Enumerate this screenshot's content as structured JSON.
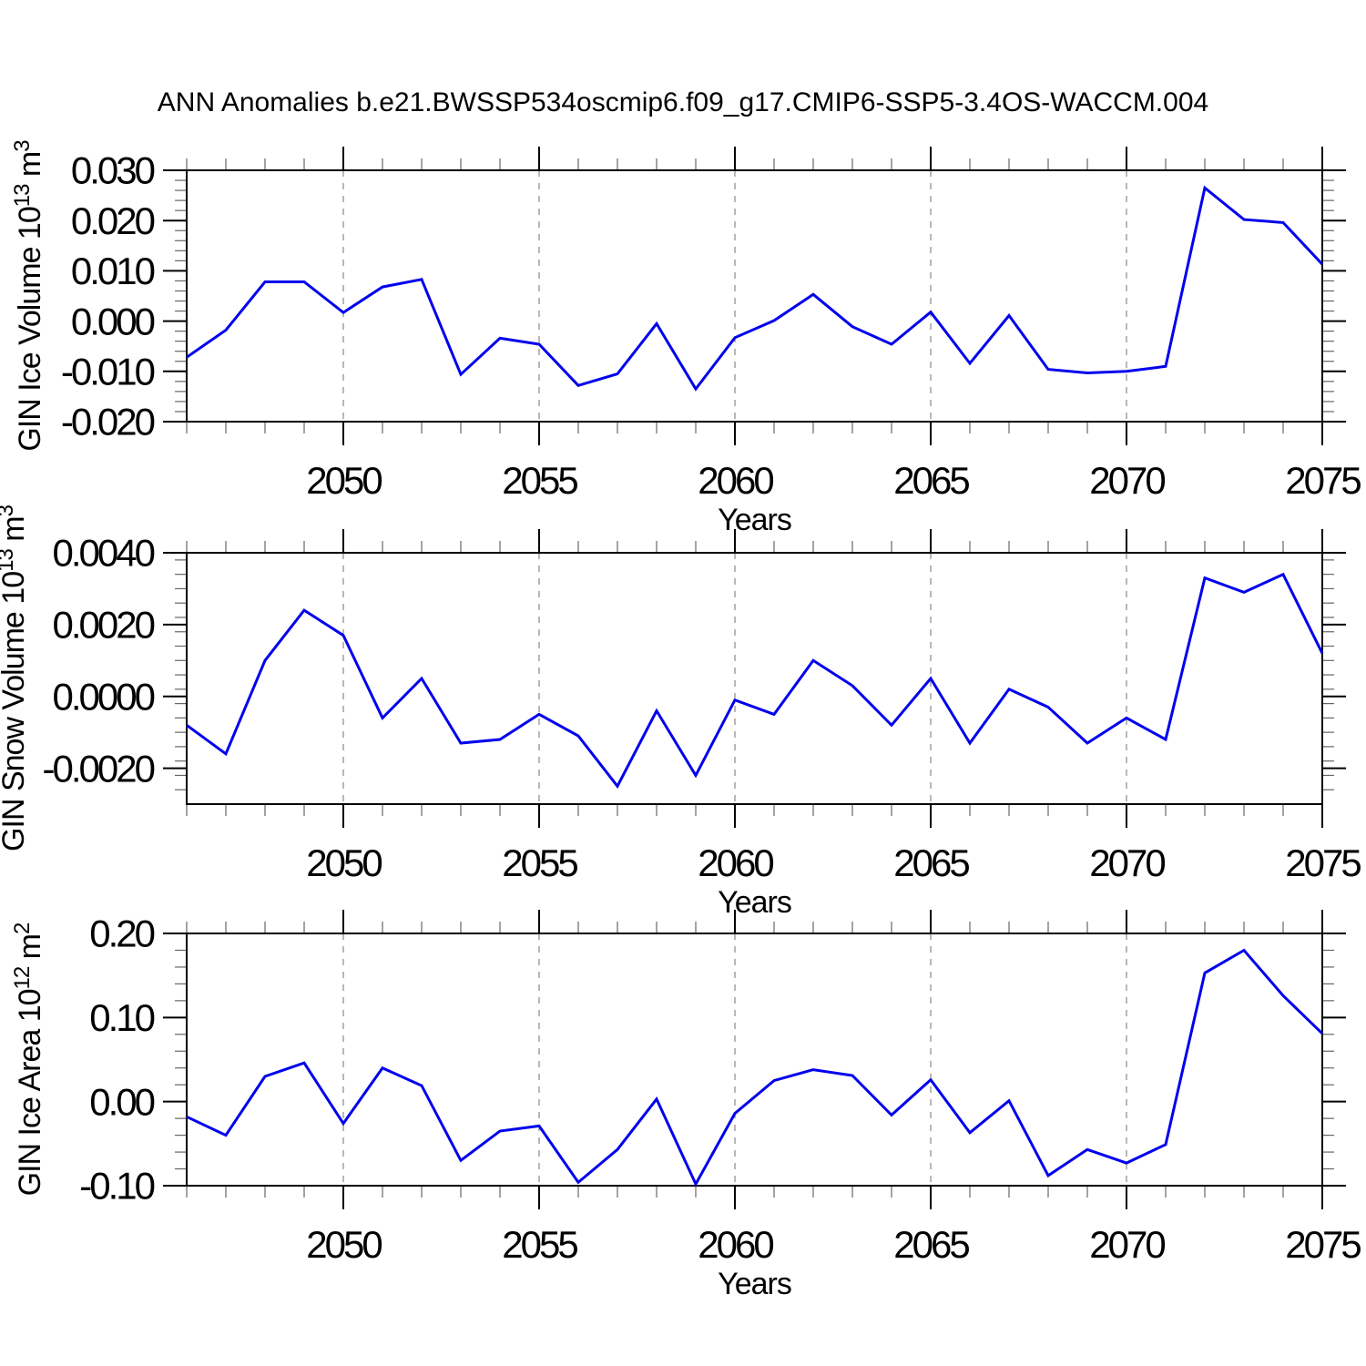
{
  "title": "ANN Anomalies b.e21.BWSSP534oscmip6.f09_g17.CMIP6-SSP5-3.4OS-WACCM.004",
  "colors": {
    "line": "#0000EE",
    "grid": "#888888",
    "axis": "#000000",
    "minor_tick": "#666666",
    "text": "#000000",
    "background": "#ffffff"
  },
  "chart_data": [
    {
      "type": "line",
      "title": "",
      "xlabel": "Years",
      "ylabel": "GIN Ice Volume 10¹³ m³",
      "x": [
        2046,
        2047,
        2048,
        2049,
        2050,
        2051,
        2052,
        2053,
        2054,
        2055,
        2056,
        2057,
        2058,
        2059,
        2060,
        2061,
        2062,
        2063,
        2064,
        2065,
        2066,
        2067,
        2068,
        2069,
        2070,
        2071,
        2072,
        2073,
        2074,
        2075
      ],
      "values": [
        -0.0072,
        -0.0018,
        0.0078,
        0.0078,
        0.0017,
        0.0068,
        0.0083,
        -0.0106,
        -0.0034,
        -0.0046,
        -0.0128,
        -0.0105,
        -0.0005,
        -0.0135,
        -0.0033,
        0.0001,
        0.0053,
        -0.0011,
        -0.0046,
        0.0018,
        -0.0084,
        0.0011,
        -0.0096,
        -0.0103,
        -0.01,
        -0.009,
        0.0265,
        0.0202,
        0.0196,
        0.0113
      ],
      "xlim": [
        2046,
        2075
      ],
      "ylim": [
        -0.02,
        0.03
      ],
      "y_major_ticks": [
        0.03,
        0.02,
        0.01,
        0.0,
        -0.01,
        -0.02
      ],
      "y_tick_labels": [
        "0.030",
        "0.020",
        "0.010",
        "0.000",
        "-0.010",
        "-0.020"
      ],
      "y_minor_step": 0.002,
      "x_major_ticks": [
        2050,
        2055,
        2060,
        2065,
        2070,
        2075
      ],
      "x_tick_labels": [
        "2050",
        "2055",
        "2060",
        "2065",
        "2070",
        "2075"
      ],
      "grid_x": [
        2050,
        2055,
        2060,
        2065,
        2070
      ],
      "grid_style": "vertical-dashed",
      "legend": "none"
    },
    {
      "type": "line",
      "title": "",
      "xlabel": "Years",
      "ylabel": "GIN Snow Volume 10¹³ m³",
      "x": [
        2046,
        2047,
        2048,
        2049,
        2050,
        2051,
        2052,
        2053,
        2054,
        2055,
        2056,
        2057,
        2058,
        2059,
        2060,
        2061,
        2062,
        2063,
        2064,
        2065,
        2066,
        2067,
        2068,
        2069,
        2070,
        2071,
        2072,
        2073,
        2074,
        2075
      ],
      "values": [
        -0.0008,
        -0.0016,
        0.001,
        0.0024,
        0.0017,
        -0.0006,
        0.0005,
        -0.0013,
        -0.0012,
        -0.0005,
        -0.0011,
        -0.0025,
        -0.0004,
        -0.0022,
        -0.0001,
        -0.0005,
        0.001,
        0.0003,
        -0.0008,
        0.0005,
        -0.0013,
        0.0002,
        -0.0003,
        -0.0013,
        -0.0006,
        -0.0012,
        0.0033,
        0.0029,
        0.0034,
        0.0012
      ],
      "xlim": [
        2046,
        2075
      ],
      "ylim": [
        -0.003,
        0.004
      ],
      "y_major_ticks": [
        0.004,
        0.002,
        0.0,
        -0.002
      ],
      "y_tick_labels": [
        "0.0040",
        "0.0020",
        "0.0000",
        "-0.0020"
      ],
      "y_minor_step": 0.0004,
      "x_major_ticks": [
        2050,
        2055,
        2060,
        2065,
        2070,
        2075
      ],
      "x_tick_labels": [
        "2050",
        "2055",
        "2060",
        "2065",
        "2070",
        "2075"
      ],
      "grid_x": [
        2050,
        2055,
        2060,
        2065,
        2070
      ],
      "grid_style": "vertical-dashed",
      "legend": "none"
    },
    {
      "type": "line",
      "title": "",
      "xlabel": "Years",
      "ylabel": "GIN Ice Area 10¹² m²",
      "x": [
        2046,
        2047,
        2048,
        2049,
        2050,
        2051,
        2052,
        2053,
        2054,
        2055,
        2056,
        2057,
        2058,
        2059,
        2060,
        2061,
        2062,
        2063,
        2064,
        2065,
        2066,
        2067,
        2068,
        2069,
        2070,
        2071,
        2072,
        2073,
        2074,
        2075
      ],
      "values": [
        -0.018,
        -0.04,
        0.03,
        0.046,
        -0.026,
        0.04,
        0.019,
        -0.07,
        -0.035,
        -0.029,
        -0.096,
        -0.057,
        0.003,
        -0.098,
        -0.014,
        0.025,
        0.038,
        0.031,
        -0.016,
        0.026,
        -0.037,
        0.001,
        -0.088,
        -0.057,
        -0.073,
        -0.051,
        0.153,
        0.18,
        0.126,
        0.081
      ],
      "xlim": [
        2046,
        2075
      ],
      "ylim": [
        -0.1,
        0.2
      ],
      "y_major_ticks": [
        0.2,
        0.1,
        0.0,
        -0.1
      ],
      "y_tick_labels": [
        "0.20",
        "0.10",
        "0.00",
        "-0.10"
      ],
      "y_minor_step": 0.02,
      "x_major_ticks": [
        2050,
        2055,
        2060,
        2065,
        2070,
        2075
      ],
      "x_tick_labels": [
        "2050",
        "2055",
        "2060",
        "2065",
        "2070",
        "2075"
      ],
      "grid_x": [
        2050,
        2055,
        2060,
        2065,
        2070
      ],
      "grid_style": "vertical-dashed",
      "legend": "none"
    }
  ]
}
